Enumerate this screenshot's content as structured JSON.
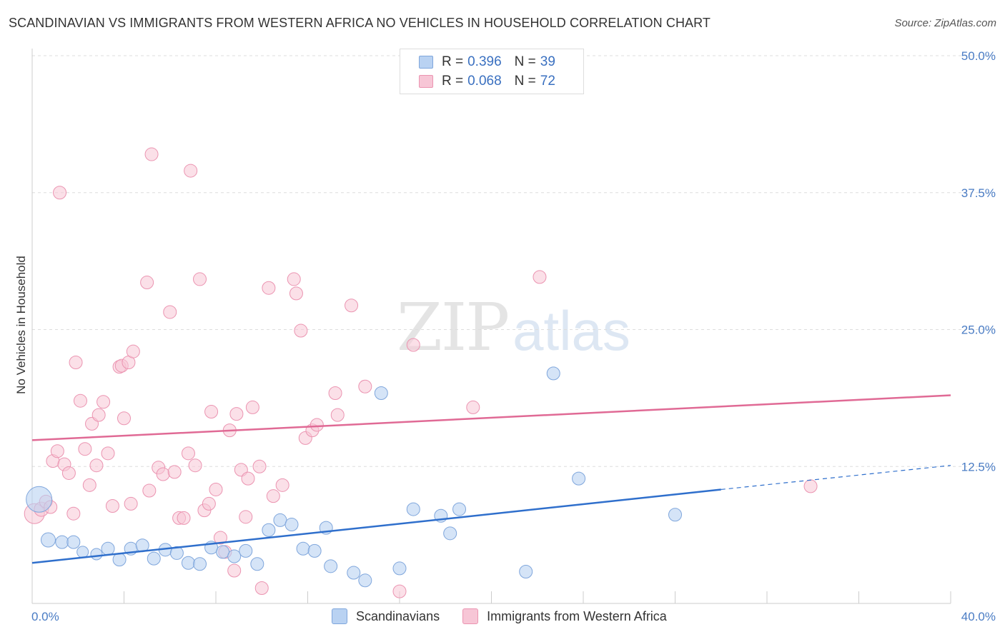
{
  "title": "SCANDINAVIAN VS IMMIGRANTS FROM WESTERN AFRICA NO VEHICLES IN HOUSEHOLD CORRELATION CHART",
  "source": "Source: ZipAtlas.com",
  "watermark": {
    "zip": "ZIP",
    "atlas": "atlas"
  },
  "legend_top": {
    "rows": [
      {
        "r_label": "R = ",
        "r_value": "0.396",
        "n_label": "N = ",
        "n_value": "39"
      },
      {
        "r_label": "R = ",
        "r_value": "0.068",
        "n_label": "N = ",
        "n_value": "72"
      }
    ]
  },
  "legend_bottom": [
    "Scandinavians",
    "Immigrants from Western Africa"
  ],
  "colors": {
    "blue_fill": "#b9d2f2",
    "blue_stroke": "#7fa6dc",
    "blue_line": "#2f6fcc",
    "pink_fill": "#f7c6d6",
    "pink_stroke": "#eb94b1",
    "pink_line": "#e06a95",
    "grid": "#dddddd",
    "axis_text": "#4a7cc4"
  },
  "chart_data": {
    "type": "scatter",
    "title": "SCANDINAVIAN VS IMMIGRANTS FROM WESTERN AFRICA NO VEHICLES IN HOUSEHOLD CORRELATION CHART",
    "xlabel": "",
    "ylabel": "No Vehicles in Household",
    "xlim": [
      0,
      40
    ],
    "ylim": [
      0,
      50
    ],
    "x_tick_labels": [
      "0.0%",
      "40.0%"
    ],
    "y_tick_labels": [
      "12.5%",
      "25.0%",
      "37.5%",
      "50.0%"
    ],
    "y_ticks": [
      12.5,
      25.0,
      37.5,
      50.0
    ],
    "grid": true,
    "legend_placement": "top-center",
    "series": [
      {
        "name": "Scandinavians",
        "r": 0.396,
        "n": 39,
        "trend": {
          "x": [
            0,
            30
          ],
          "y": [
            3.7,
            10.4
          ],
          "dashed_to": [
            40,
            12.6
          ]
        },
        "points": [
          [
            0.3,
            9.5,
            18
          ],
          [
            0.7,
            5.8,
            10
          ],
          [
            1.3,
            5.6,
            9
          ],
          [
            1.8,
            5.6,
            9
          ],
          [
            2.2,
            4.7,
            8
          ],
          [
            2.8,
            4.5,
            8
          ],
          [
            3.3,
            5.0,
            9
          ],
          [
            3.8,
            4.0,
            9
          ],
          [
            4.3,
            5.0,
            9
          ],
          [
            4.8,
            5.3,
            9
          ],
          [
            5.3,
            4.1,
            9
          ],
          [
            5.8,
            4.9,
            9
          ],
          [
            6.3,
            4.6,
            9
          ],
          [
            6.8,
            3.7,
            9
          ],
          [
            7.3,
            3.6,
            9
          ],
          [
            7.8,
            5.1,
            9
          ],
          [
            8.3,
            4.7,
            9
          ],
          [
            8.8,
            4.3,
            9
          ],
          [
            9.3,
            4.8,
            9
          ],
          [
            9.8,
            3.6,
            9
          ],
          [
            10.3,
            6.7,
            9
          ],
          [
            10.8,
            7.6,
            9
          ],
          [
            11.3,
            7.2,
            9
          ],
          [
            11.8,
            5.0,
            9
          ],
          [
            12.3,
            4.8,
            9
          ],
          [
            12.8,
            6.9,
            9
          ],
          [
            13.0,
            3.4,
            9
          ],
          [
            14.0,
            2.8,
            9
          ],
          [
            14.5,
            2.1,
            9
          ],
          [
            15.2,
            19.2,
            9
          ],
          [
            16.0,
            3.2,
            9
          ],
          [
            16.6,
            8.6,
            9
          ],
          [
            17.8,
            8.0,
            9
          ],
          [
            18.2,
            6.4,
            9
          ],
          [
            18.6,
            8.6,
            9
          ],
          [
            21.5,
            2.9,
            9
          ],
          [
            22.7,
            21.0,
            9
          ],
          [
            23.8,
            11.4,
            9
          ],
          [
            28.0,
            8.1,
            9
          ]
        ]
      },
      {
        "name": "Immigrants from Western Africa",
        "r": 0.068,
        "n": 72,
        "trend": {
          "x": [
            0,
            40
          ],
          "y": [
            14.9,
            19.0
          ]
        },
        "points": [
          [
            0.1,
            8.2,
            14
          ],
          [
            0.4,
            8.6,
            10
          ],
          [
            0.6,
            9.3,
            9
          ],
          [
            0.8,
            8.8,
            9
          ],
          [
            0.9,
            13.0,
            9
          ],
          [
            1.1,
            13.9,
            9
          ],
          [
            1.2,
            37.5,
            9
          ],
          [
            1.4,
            12.7,
            9
          ],
          [
            1.6,
            11.9,
            9
          ],
          [
            1.8,
            8.2,
            9
          ],
          [
            1.9,
            22.0,
            9
          ],
          [
            2.1,
            18.5,
            9
          ],
          [
            2.3,
            14.1,
            9
          ],
          [
            2.5,
            10.8,
            9
          ],
          [
            2.6,
            16.4,
            9
          ],
          [
            2.8,
            12.6,
            9
          ],
          [
            2.9,
            17.2,
            9
          ],
          [
            3.1,
            18.4,
            9
          ],
          [
            3.3,
            13.7,
            9
          ],
          [
            3.5,
            8.9,
            9
          ],
          [
            3.8,
            21.6,
            9
          ],
          [
            3.9,
            21.7,
            9
          ],
          [
            4.0,
            16.9,
            9
          ],
          [
            4.2,
            22.0,
            9
          ],
          [
            4.3,
            9.1,
            9
          ],
          [
            4.4,
            23.0,
            9
          ],
          [
            5.0,
            29.3,
            9
          ],
          [
            5.1,
            10.3,
            9
          ],
          [
            5.2,
            41.0,
            9
          ],
          [
            5.5,
            12.4,
            9
          ],
          [
            5.7,
            11.8,
            9
          ],
          [
            6.0,
            26.6,
            9
          ],
          [
            6.2,
            12.0,
            9
          ],
          [
            6.4,
            7.8,
            9
          ],
          [
            6.6,
            7.8,
            9
          ],
          [
            6.8,
            13.7,
            9
          ],
          [
            6.9,
            39.5,
            9
          ],
          [
            7.1,
            12.6,
            9
          ],
          [
            7.3,
            29.6,
            9
          ],
          [
            7.5,
            8.5,
            9
          ],
          [
            7.7,
            9.1,
            9
          ],
          [
            7.8,
            17.5,
            9
          ],
          [
            8.0,
            10.4,
            9
          ],
          [
            8.2,
            6.0,
            9
          ],
          [
            8.4,
            4.7,
            9
          ],
          [
            8.6,
            15.8,
            9
          ],
          [
            8.8,
            3.0,
            9
          ],
          [
            8.9,
            17.3,
            9
          ],
          [
            9.1,
            12.2,
            9
          ],
          [
            9.3,
            7.9,
            9
          ],
          [
            9.4,
            11.4,
            9
          ],
          [
            9.6,
            17.9,
            9
          ],
          [
            9.9,
            12.5,
            9
          ],
          [
            10.0,
            1.4,
            9
          ],
          [
            10.3,
            28.8,
            9
          ],
          [
            10.5,
            9.8,
            9
          ],
          [
            10.9,
            10.8,
            9
          ],
          [
            11.4,
            29.6,
            9
          ],
          [
            11.5,
            28.3,
            9
          ],
          [
            11.7,
            24.9,
            9
          ],
          [
            11.9,
            15.1,
            9
          ],
          [
            12.2,
            15.8,
            9
          ],
          [
            12.4,
            16.3,
            9
          ],
          [
            13.2,
            19.2,
            9
          ],
          [
            13.3,
            17.2,
            9
          ],
          [
            13.9,
            27.2,
            9
          ],
          [
            14.5,
            19.8,
            9
          ],
          [
            16.0,
            1.1,
            9
          ],
          [
            16.6,
            23.6,
            9
          ],
          [
            19.2,
            17.9,
            9
          ],
          [
            22.1,
            29.8,
            9
          ],
          [
            33.9,
            10.7,
            9
          ]
        ]
      }
    ]
  }
}
